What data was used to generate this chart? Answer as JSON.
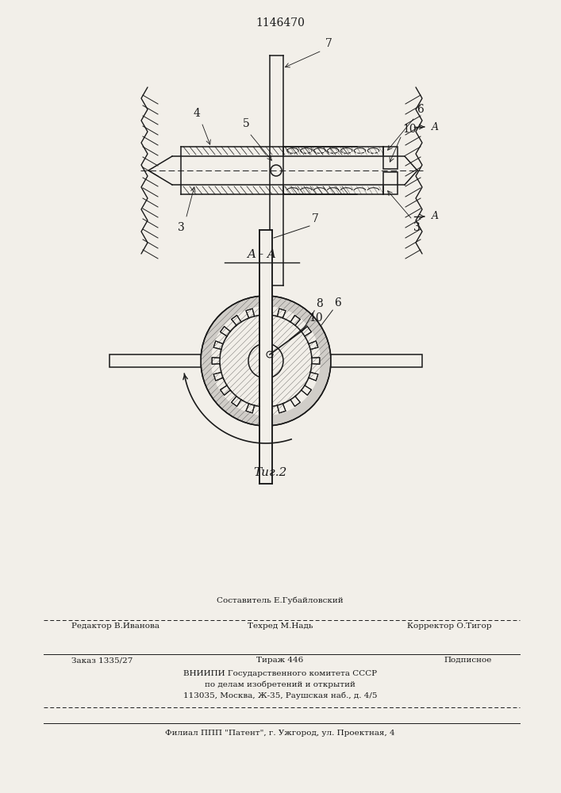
{
  "patent_number": "1146470",
  "fig2_label": "Τиг.2",
  "section_label": "A - A",
  "background_color": "#f2efe9",
  "line_color": "#1a1a1a",
  "label_3_left": "3",
  "label_3_right": "3",
  "label_4": "4",
  "label_5": "5",
  "label_6": "6",
  "label_7_top": "7",
  "label_7_circle": "7",
  "label_8": "8",
  "label_10_top": "10",
  "label_10_circle": "10",
  "label_A": "A",
  "footer_compositor": "Составитель Е.Губайловский",
  "footer_editor": "Редактор В.Иванова",
  "footer_techred": "Техред М.Надь",
  "footer_corrector": "Корректор О.Тигор",
  "footer_order": "Заказ 1335/27",
  "footer_tirazh": "Тираж 446",
  "footer_podpisnoe": "Подписное",
  "footer_vniipibody": "ВНИИПИ Государственного комитета СССР",
  "footer_podelamline": "по делам изобретений и открытий",
  "footer_address": "113035, Москва, Ж-35, Раушская наб., д. 4/5",
  "footer_filial": "Филиал ППП \"Патент\", г. Ужгород, ул. Проектная, 4"
}
